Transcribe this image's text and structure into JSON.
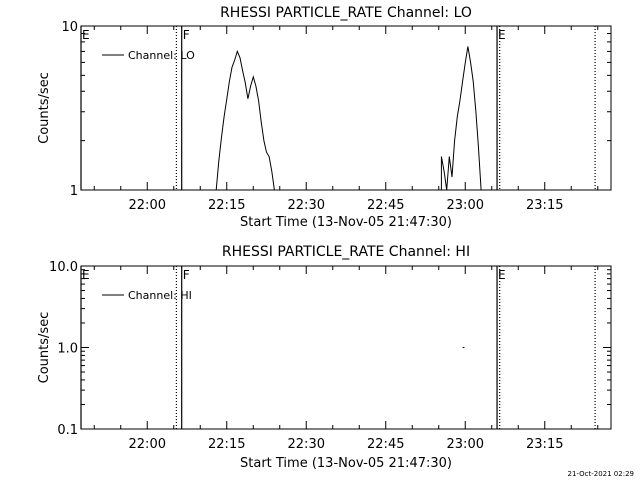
{
  "chart_data": [
    {
      "type": "line",
      "title": "RHESSI PARTICLE_RATE Channel: LO",
      "xlabel": "Start Time (13-Nov-05 21:47:30)",
      "ylabel": "Counts/sec",
      "yscale": "log",
      "xlim": [
        "21:47:30",
        "23:27:30"
      ],
      "ylim": [
        1,
        10
      ],
      "xticks": [
        "22:00",
        "22:15",
        "22:30",
        "22:45",
        "23:00",
        "23:15"
      ],
      "yticks": [
        "1",
        "10"
      ],
      "grid": false,
      "legend_position": "top-left",
      "legend_label": "Channel: LO",
      "events": [
        {
          "label": "E",
          "time": "21:47:30",
          "style": "solid"
        },
        {
          "label": "",
          "time": "22:05:30",
          "style": "dotted"
        },
        {
          "label": "F",
          "time": "22:06:30",
          "style": "solid"
        },
        {
          "label": "E",
          "time": "23:06:00",
          "style": "solid"
        },
        {
          "label": "",
          "time": "23:06:30",
          "style": "dotted"
        },
        {
          "label": "",
          "time": "23:24:30",
          "style": "dotted"
        }
      ],
      "series": [
        {
          "points": [
            [
              "22:13:00",
              1.0
            ],
            [
              "22:13:30",
              1.5
            ],
            [
              "22:14:00",
              2.1
            ],
            [
              "22:14:30",
              2.8
            ],
            [
              "22:15:00",
              3.6
            ],
            [
              "22:15:30",
              4.6
            ],
            [
              "22:16:00",
              5.6
            ],
            [
              "22:16:30",
              6.2
            ],
            [
              "22:17:00",
              7.0
            ],
            [
              "22:17:30",
              6.4
            ],
            [
              "22:18:00",
              5.3
            ],
            [
              "22:18:30",
              4.5
            ],
            [
              "22:19:00",
              3.6
            ],
            [
              "22:19:30",
              4.3
            ],
            [
              "22:20:00",
              4.9
            ],
            [
              "22:20:30",
              4.3
            ],
            [
              "22:21:00",
              3.5
            ],
            [
              "22:21:30",
              2.6
            ],
            [
              "22:22:00",
              2.0
            ],
            [
              "22:22:30",
              1.7
            ],
            [
              "22:23:00",
              1.6
            ],
            [
              "22:23:30",
              1.3
            ],
            [
              "22:24:00",
              1.0
            ]
          ]
        },
        {
          "points": [
            [
              "22:55:30",
              1.0
            ],
            [
              "22:55:30",
              1.6
            ],
            [
              "22:56:00",
              1.3
            ],
            [
              "22:56:30",
              1.0
            ],
            [
              "22:57:00",
              1.6
            ],
            [
              "22:57:30",
              1.2
            ],
            [
              "22:58:00",
              2.0
            ],
            [
              "22:58:30",
              2.8
            ],
            [
              "22:59:00",
              3.5
            ],
            [
              "22:59:30",
              4.6
            ],
            [
              "23:00:00",
              6.0
            ],
            [
              "23:00:30",
              7.5
            ],
            [
              "23:01:00",
              6.0
            ],
            [
              "23:01:30",
              4.6
            ],
            [
              "23:02:00",
              3.0
            ],
            [
              "23:02:30",
              1.8
            ],
            [
              "23:03:00",
              1.0
            ]
          ]
        }
      ]
    },
    {
      "type": "line",
      "title": "RHESSI PARTICLE_RATE Channel: HI",
      "xlabel": "Start Time (13-Nov-05 21:47:30)",
      "ylabel": "Counts/sec",
      "yscale": "log",
      "xlim": [
        "21:47:30",
        "23:27:30"
      ],
      "ylim": [
        0.1,
        10
      ],
      "xticks": [
        "22:00",
        "22:15",
        "22:30",
        "22:45",
        "23:00",
        "23:15"
      ],
      "yticks": [
        "0.1",
        "1.0",
        "10.0"
      ],
      "grid": false,
      "legend_position": "top-left",
      "legend_label": "Channel: HI",
      "events": [
        {
          "label": "E",
          "time": "21:47:30",
          "style": "solid"
        },
        {
          "label": "",
          "time": "22:05:30",
          "style": "dotted"
        },
        {
          "label": "F",
          "time": "22:06:30",
          "style": "solid"
        },
        {
          "label": "E",
          "time": "23:06:00",
          "style": "solid"
        },
        {
          "label": "",
          "time": "23:06:30",
          "style": "dotted"
        },
        {
          "label": "",
          "time": "23:24:30",
          "style": "dotted"
        }
      ],
      "series": [
        {
          "points": [
            [
              "22:59:30",
              1.0
            ],
            [
              "22:59:50",
              1.0
            ]
          ]
        }
      ]
    }
  ],
  "footer": {
    "timestamp": "21-Oct-2021 02:29"
  }
}
